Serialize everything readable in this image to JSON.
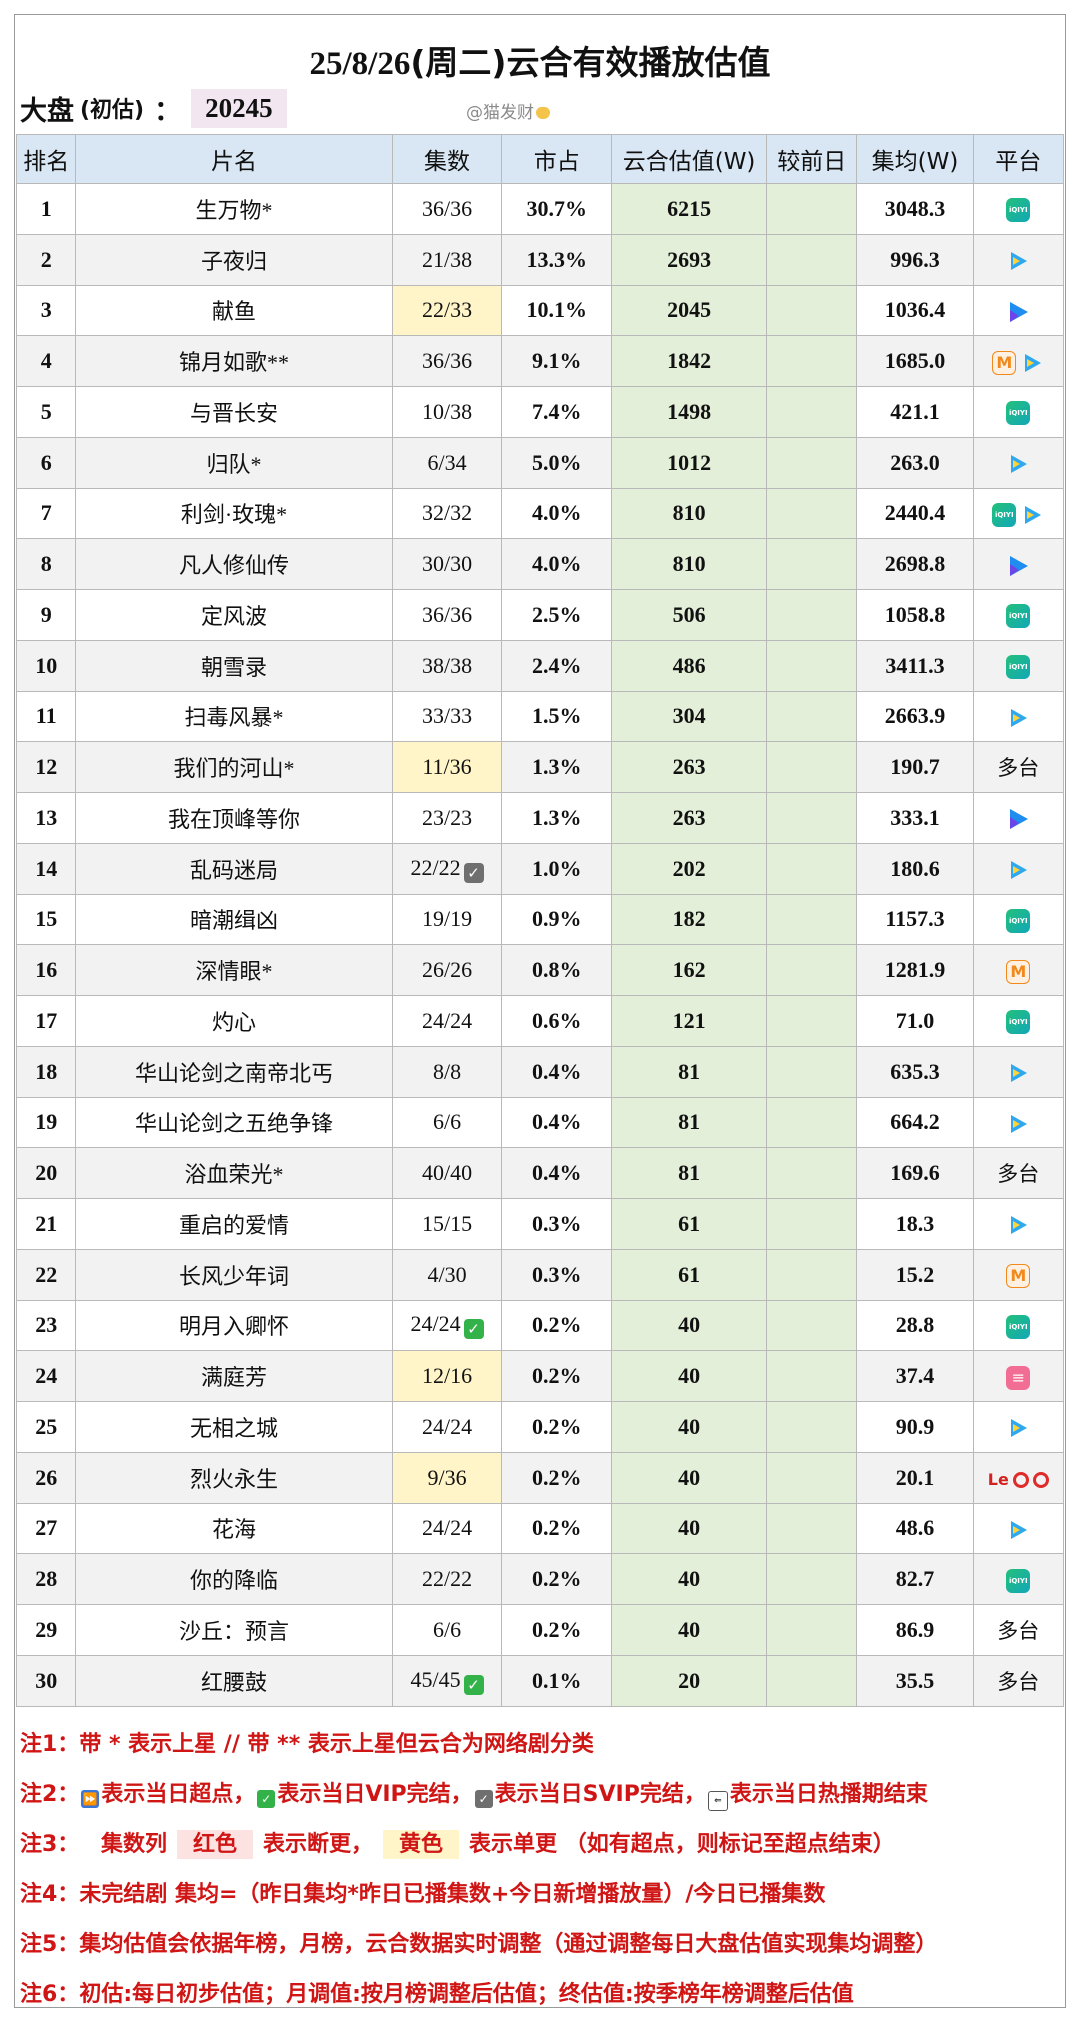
{
  "header": {
    "date": "25/8/26",
    "weekday": "(周二)",
    "title_rest": "云合有效播放估值",
    "market_label": "大盘",
    "market_paren": "(初估)",
    "market_colon": "：",
    "market_value": "20245",
    "watermark": "@猫发财"
  },
  "columns": [
    "排名",
    "片名",
    "集数",
    "市占",
    "云合估值(W)",
    "较前日",
    "集均(W)",
    "平台"
  ],
  "rows": [
    {
      "rank": "1",
      "name": "生万物*",
      "episodes": "36/36",
      "share": "30.7%",
      "estimate": "6215",
      "avg": "3048.3",
      "platform": [
        "iqiyi"
      ]
    },
    {
      "rank": "2",
      "name": "子夜归",
      "episodes": "21/38",
      "share": "13.3%",
      "estimate": "2693",
      "avg": "996.3",
      "platform": [
        "tencent"
      ]
    },
    {
      "rank": "3",
      "name": "献鱼",
      "episodes": "22/33",
      "episodes_highlight": "yellow",
      "share": "10.1%",
      "estimate": "2045",
      "avg": "1036.4",
      "platform": [
        "youku"
      ]
    },
    {
      "rank": "4",
      "name": "锦月如歌**",
      "episodes": "36/36",
      "share": "9.1%",
      "estimate": "1842",
      "avg": "1685.0",
      "platform": [
        "mango",
        "tencent"
      ]
    },
    {
      "rank": "5",
      "name": "与晋长安",
      "episodes": "10/38",
      "share": "7.4%",
      "estimate": "1498",
      "avg": "421.1",
      "platform": [
        "iqiyi"
      ]
    },
    {
      "rank": "6",
      "name": "归队*",
      "episodes": "6/34",
      "share": "5.0%",
      "estimate": "1012",
      "avg": "263.0",
      "platform": [
        "tencent"
      ]
    },
    {
      "rank": "7",
      "name": "利剑·玫瑰*",
      "episodes": "32/32",
      "share": "4.0%",
      "estimate": "810",
      "avg": "2440.4",
      "platform": [
        "iqiyi",
        "tencent"
      ]
    },
    {
      "rank": "8",
      "name": "凡人修仙传",
      "episodes": "30/30",
      "share": "4.0%",
      "estimate": "810",
      "avg": "2698.8",
      "platform": [
        "youku"
      ]
    },
    {
      "rank": "9",
      "name": "定风波",
      "episodes": "36/36",
      "share": "2.5%",
      "estimate": "506",
      "avg": "1058.8",
      "platform": [
        "iqiyi"
      ]
    },
    {
      "rank": "10",
      "name": "朝雪录",
      "episodes": "38/38",
      "share": "2.4%",
      "estimate": "486",
      "avg": "3411.3",
      "platform": [
        "iqiyi"
      ]
    },
    {
      "rank": "11",
      "name": "扫毒风暴*",
      "episodes": "33/33",
      "share": "1.5%",
      "estimate": "304",
      "avg": "2663.9",
      "platform": [
        "tencent"
      ]
    },
    {
      "rank": "12",
      "name": "我们的河山*",
      "episodes": "11/36",
      "episodes_highlight": "yellow",
      "share": "1.3%",
      "estimate": "263",
      "avg": "190.7",
      "platform_text": "多台"
    },
    {
      "rank": "13",
      "name": "我在顶峰等你",
      "episodes": "23/23",
      "share": "1.3%",
      "estimate": "263",
      "avg": "333.1",
      "platform": [
        "youku"
      ]
    },
    {
      "rank": "14",
      "name": "乱码迷局",
      "episodes": "22/22",
      "episodes_mark": "grey",
      "share": "1.0%",
      "estimate": "202",
      "avg": "180.6",
      "platform": [
        "tencent"
      ]
    },
    {
      "rank": "15",
      "name": "暗潮缉凶",
      "episodes": "19/19",
      "share": "0.9%",
      "estimate": "182",
      "avg": "1157.3",
      "platform": [
        "iqiyi"
      ]
    },
    {
      "rank": "16",
      "name": "深情眼*",
      "episodes": "26/26",
      "share": "0.8%",
      "estimate": "162",
      "avg": "1281.9",
      "platform": [
        "mango"
      ]
    },
    {
      "rank": "17",
      "name": "灼心",
      "episodes": "24/24",
      "share": "0.6%",
      "estimate": "121",
      "avg": "71.0",
      "platform": [
        "iqiyi"
      ]
    },
    {
      "rank": "18",
      "name": "华山论剑之南帝北丐",
      "episodes": "8/8",
      "share": "0.4%",
      "estimate": "81",
      "avg": "635.3",
      "platform": [
        "tencent"
      ]
    },
    {
      "rank": "19",
      "name": "华山论剑之五绝争锋",
      "episodes": "6/6",
      "share": "0.4%",
      "estimate": "81",
      "avg": "664.2",
      "platform": [
        "tencent"
      ]
    },
    {
      "rank": "20",
      "name": "浴血荣光*",
      "episodes": "40/40",
      "share": "0.4%",
      "estimate": "81",
      "avg": "169.6",
      "platform_text": "多台"
    },
    {
      "rank": "21",
      "name": "重启的爱情",
      "episodes": "15/15",
      "share": "0.3%",
      "estimate": "61",
      "avg": "18.3",
      "platform": [
        "tencent"
      ]
    },
    {
      "rank": "22",
      "name": "长风少年词",
      "episodes": "4/30",
      "share": "0.3%",
      "estimate": "61",
      "avg": "15.2",
      "platform": [
        "mango"
      ]
    },
    {
      "rank": "23",
      "name": "明月入卿怀",
      "episodes": "24/24",
      "episodes_mark": "green",
      "share": "0.2%",
      "estimate": "40",
      "avg": "28.8",
      "platform": [
        "iqiyi"
      ]
    },
    {
      "rank": "24",
      "name": "满庭芳",
      "episodes": "12/16",
      "episodes_highlight": "yellow",
      "share": "0.2%",
      "estimate": "40",
      "avg": "37.4",
      "platform": [
        "bili"
      ]
    },
    {
      "rank": "25",
      "name": "无相之城",
      "episodes": "24/24",
      "share": "0.2%",
      "estimate": "40",
      "avg": "90.9",
      "platform": [
        "tencent"
      ]
    },
    {
      "rank": "26",
      "name": "烈火永生",
      "episodes": "9/36",
      "episodes_highlight": "yellow",
      "share": "0.2%",
      "estimate": "40",
      "avg": "20.1",
      "platform": [
        "le",
        "dot",
        "dot"
      ]
    },
    {
      "rank": "27",
      "name": "花海",
      "episodes": "24/24",
      "share": "0.2%",
      "estimate": "40",
      "avg": "48.6",
      "platform": [
        "tencent"
      ]
    },
    {
      "rank": "28",
      "name": "你的降临",
      "episodes": "22/22",
      "share": "0.2%",
      "estimate": "40",
      "avg": "82.7",
      "platform": [
        "iqiyi"
      ]
    },
    {
      "rank": "29",
      "name": "沙丘：预言",
      "episodes": "6/6",
      "share": "0.2%",
      "estimate": "40",
      "avg": "86.9",
      "platform_text": "多台"
    },
    {
      "rank": "30",
      "name": "红腰鼓",
      "episodes": "45/45",
      "episodes_mark": "green",
      "share": "0.1%",
      "estimate": "20",
      "avg": "35.5",
      "platform_text": "多台"
    }
  ],
  "notes": {
    "n1_label": "注1：",
    "n1_text": "带 * 表示上星 // 带 ** 表示上星但云合为网络剧分类",
    "n2_label": "注2：",
    "n2_a": "表示当日超点，",
    "n2_b": "表示当日VIP完结，",
    "n2_c": "表示当日SVIP完结，",
    "n2_d": "表示当日热播期结束",
    "n3_label": "注3：",
    "n3_a": "集数列",
    "n3_red": "红色",
    "n3_b": "表示断更，",
    "n3_yellow": "黄色",
    "n3_c": "表示单更 （如有超点，则标记至超点结束）",
    "n4_label": "注4：",
    "n4_text": "未完结剧 集均=（昨日集均*昨日已播集数+今日新增播放量）/今日已播集数",
    "n5_label": "注5：",
    "n5_text": "集均估值会依据年榜，月榜，云合数据实时调整（通过调整每日大盘估值实现集均调整）",
    "n6_label": "注6：",
    "n6_text": "初估:每日初步估值；月调值:按月榜调整后估值；终估值:按季榜年榜调整后估值"
  }
}
